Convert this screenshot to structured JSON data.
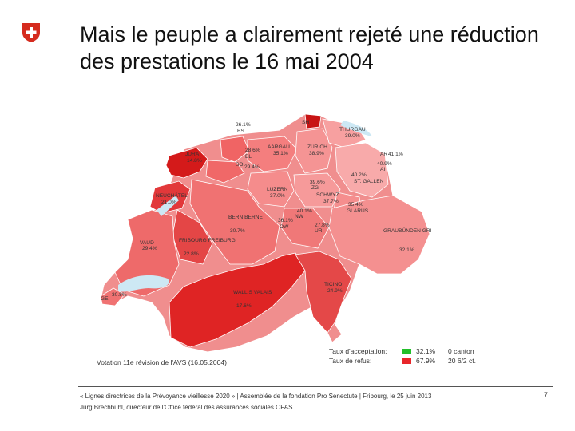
{
  "title": "Mais le peuple a clairement rejeté une réduction des prestations le 16 mai 2004",
  "brand_color": "#d52b1e",
  "map": {
    "cantons": [
      {
        "name": "SH",
        "pct": ""
      },
      {
        "name": "THURGAU",
        "pct": "39.0%"
      },
      {
        "name": "BS",
        "pct": "26.1%"
      },
      {
        "name": "JURA",
        "pct": "14.8%"
      },
      {
        "name": "AARGAU",
        "pct": "35.1%"
      },
      {
        "name": "ZÜRICH",
        "pct": "38.9%"
      },
      {
        "name": "BL",
        "pct": "28.6%"
      },
      {
        "name": "SO",
        "pct": "29.4%"
      },
      {
        "name": "AR",
        "pct": "41.1%"
      },
      {
        "name": "AI",
        "pct": "40.9%"
      },
      {
        "name": "ST. GALLEN",
        "pct": "40.2%"
      },
      {
        "name": "NEUCHÂTEL",
        "pct": "21.0%"
      },
      {
        "name": "LUZERN",
        "pct": "37.0%"
      },
      {
        "name": "ZG",
        "pct": "39.6%"
      },
      {
        "name": "SCHWYZ",
        "pct": "37.7%"
      },
      {
        "name": "GLARUS",
        "pct": "35.4%"
      },
      {
        "name": "NW",
        "pct": "40.1%"
      },
      {
        "name": "OW",
        "pct": "36.1%"
      },
      {
        "name": "URI",
        "pct": "27.8%"
      },
      {
        "name": "BERN BERNE",
        "pct": "30.7%"
      },
      {
        "name": "VAUD",
        "pct": "29.4%"
      },
      {
        "name": "FRIBOURG FREIBURG",
        "pct": "22.8%"
      },
      {
        "name": "GRAUBÜNDEN GRIGIONI GRISCHUN",
        "pct": "32.1%"
      },
      {
        "name": "GE",
        "pct": "30.8%"
      },
      {
        "name": "WALLIS VALAIS",
        "pct": "17.6%"
      },
      {
        "name": "TICINO",
        "pct": "24.9%"
      }
    ]
  },
  "legend": {
    "title": "Votation 11e révision de l'AVS (16.05.2004)",
    "rows": [
      {
        "label": "Taux d'acceptation:",
        "color": "#22c02a",
        "pct": "32.1%",
        "cantons": "0 canton"
      },
      {
        "label": "Taux de refus:",
        "color": "#e8262a",
        "pct": "67.9%",
        "cantons": "20 6/2 ct."
      }
    ]
  },
  "footer": {
    "line1": "« Lignes directrices de la Prévoyance vieillesse 2020 » | Assemblée de la fondation Pro Senectute | Fribourg, le 25 juin 2013",
    "line2": "Jürg Brechbühl, directeur de l'Office fédéral des assurances sociales OFAS",
    "page": "7"
  }
}
